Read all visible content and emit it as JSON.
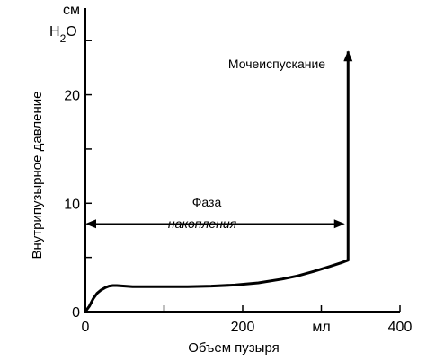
{
  "chart_data": {
    "type": "line",
    "title": "",
    "xlabel": "Объем пузыря",
    "ylabel": "Внутрипузырное давление",
    "yunit_line1": "см",
    "yunit_line2": "H2O",
    "xunit_tick_label": "мл",
    "xlim": [
      0,
      400
    ],
    "ylim": [
      0,
      28
    ],
    "x_ticks": [
      0,
      100,
      200,
      300,
      400
    ],
    "x_tick_labels": [
      "0",
      "",
      "200",
      "мл",
      "400"
    ],
    "y_ticks": [
      0,
      5,
      10,
      15,
      20,
      25
    ],
    "y_tick_labels": [
      "0",
      "",
      "10",
      "",
      "20",
      ""
    ],
    "grid": false,
    "series": [
      {
        "x": [
          0,
          5,
          10,
          15,
          20,
          25,
          30,
          35,
          40,
          50,
          60,
          80,
          100,
          130,
          160,
          190,
          220,
          250,
          270,
          290,
          310,
          325,
          334
        ],
        "y": [
          0,
          0.5,
          1.2,
          1.7,
          2.0,
          2.2,
          2.35,
          2.4,
          2.4,
          2.35,
          2.3,
          2.3,
          2.3,
          2.3,
          2.35,
          2.45,
          2.65,
          3.0,
          3.3,
          3.7,
          4.15,
          4.5,
          4.75
        ]
      }
    ],
    "voiding": {
      "x": 334,
      "y_from": 4.75,
      "y_to": 24.0
    },
    "annotations": {
      "voiding_label": "Мочеиспускание",
      "phase_line1": "Фаза",
      "phase_line2": "накопления",
      "phase_arrow_from_x": 0,
      "phase_arrow_to_x": 330,
      "phase_arrow_y": 8.1
    }
  }
}
